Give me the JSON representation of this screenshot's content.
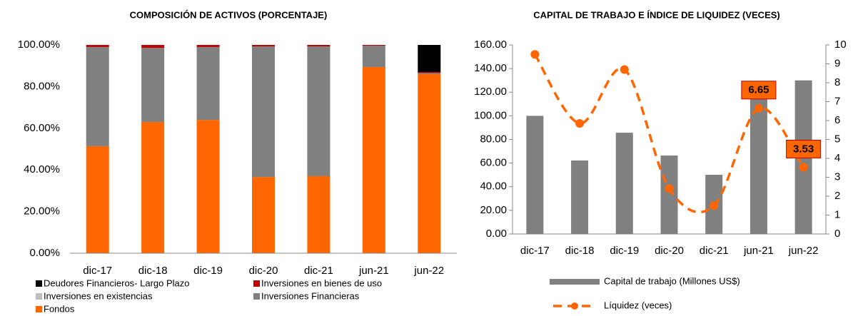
{
  "chart_data": [
    {
      "type": "stacked-bar",
      "title": "COMPOSICIÓN DE ACTIVOS (PORCENTAJE)",
      "categories": [
        "dic-17",
        "dic-18",
        "dic-19",
        "dic-20",
        "dic-21",
        "jun-21",
        "jun-22"
      ],
      "series": [
        {
          "name": "Fondos",
          "color": "#ff6600",
          "values": [
            51.4,
            63,
            64,
            36.6,
            37,
            89.4,
            86
          ]
        },
        {
          "name": "Inversiones Financieras",
          "color": "#808080",
          "values": [
            47.6,
            35.6,
            35,
            62.7,
            62.3,
            10.2,
            0.5
          ]
        },
        {
          "name": "Inversiones en existencias",
          "color": "#bfbfbf",
          "values": [
            0,
            0,
            0,
            0,
            0,
            0,
            0
          ]
        },
        {
          "name": "Inversiones en bienes de uso",
          "color": "#c00000",
          "values": [
            1,
            1.4,
            1,
            0.7,
            0.7,
            0.4,
            0.5
          ]
        },
        {
          "name": "Deudores Financieros- Largo Plazo",
          "color": "#000000",
          "values": [
            0,
            0,
            0,
            0,
            0,
            0,
            13
          ]
        }
      ],
      "ylim": [
        0,
        100
      ],
      "yticks": [
        {
          "value": 0,
          "label": "0.00%"
        },
        {
          "value": 20,
          "label": "20.00%"
        },
        {
          "value": 40,
          "label": "40.00%"
        },
        {
          "value": 60,
          "label": "60.00%"
        },
        {
          "value": 80,
          "label": "80.00%"
        },
        {
          "value": 100,
          "label": "100.00%"
        }
      ],
      "legend": "bottom"
    },
    {
      "type": "bar-line",
      "title": "CAPITAL DE TRABAJO E ÍNDICE DE LIQUIDEZ (VECES)",
      "categories": [
        "dic-17",
        "dic-18",
        "dic-19",
        "dic-20",
        "dic-21",
        "jun-21",
        "jun-22"
      ],
      "series": [
        {
          "name": "Capital de trabajo (Millones US$)",
          "color": "#808080",
          "type": "bar",
          "values": [
            100,
            62.2,
            85.7,
            66.4,
            50.1,
            119,
            130
          ]
        },
        {
          "name": "Líquidez (veces)",
          "color": "#ff6600",
          "type": "line",
          "axis": "y2",
          "values": [
            9.5,
            5.85,
            8.7,
            2.4,
            1.5,
            6.65,
            3.53
          ],
          "value_labels": [
            null,
            null,
            null,
            null,
            null,
            "6.65",
            "3.53"
          ]
        }
      ],
      "ylim": [
        0,
        160
      ],
      "yticks": [
        {
          "value": 0,
          "label": "0.00"
        },
        {
          "value": 20,
          "label": "20.00"
        },
        {
          "value": 40,
          "label": "40.00"
        },
        {
          "value": 60,
          "label": "60.00"
        },
        {
          "value": 80,
          "label": "80.00"
        },
        {
          "value": 100,
          "label": "100.00"
        },
        {
          "value": 120,
          "label": "120.00"
        },
        {
          "value": 140,
          "label": "140.00"
        },
        {
          "value": 160,
          "label": "160.00"
        }
      ],
      "y2lim": [
        0,
        10
      ],
      "y2ticks": [
        0,
        1,
        2,
        3,
        4,
        5,
        6,
        7,
        8,
        9,
        10
      ],
      "legend": "bottom"
    }
  ]
}
